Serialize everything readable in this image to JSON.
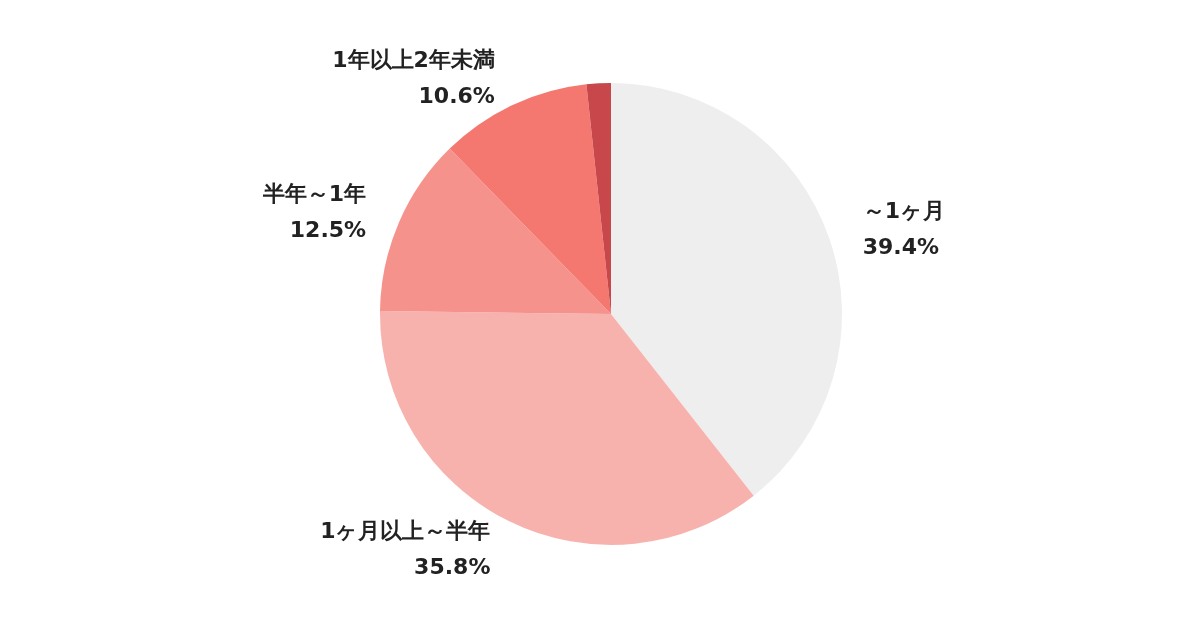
{
  "chart_data": {
    "type": "pie",
    "categories": [
      "～1ヶ月",
      "1ヶ月以上～半年",
      "半年～1年",
      "1年以上2年未満",
      null
    ],
    "values": [
      39.4,
      35.8,
      12.5,
      10.6,
      1.7
    ],
    "value_labels": [
      "39.4%",
      "35.8%",
      "12.5%",
      "10.6%",
      null
    ],
    "colors": [
      "#eeeeee",
      "#f8b2ad",
      "#f6928c",
      "#f47770",
      "#c8474b"
    ],
    "legend": false
  }
}
